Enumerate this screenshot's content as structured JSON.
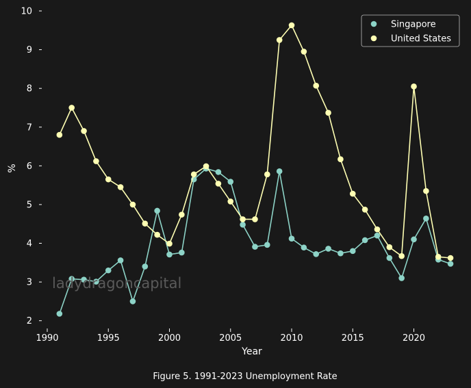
{
  "caption": "Figure 5. 1991-2023 Unemployment Rate",
  "watermark": "ladydragoncapital",
  "chart_data": {
    "type": "line",
    "title": "",
    "xlabel": "Year",
    "ylabel": "%",
    "xlim": [
      1990,
      2023.5
    ],
    "ylim": [
      1.8,
      10
    ],
    "xticks": [
      1990,
      1995,
      2000,
      2005,
      2010,
      2015,
      2020
    ],
    "yticks": [
      2,
      3,
      4,
      5,
      6,
      7,
      8,
      9,
      10
    ],
    "grid": false,
    "legend_position": "top-right",
    "x": [
      1991,
      1992,
      1993,
      1994,
      1995,
      1996,
      1997,
      1998,
      1999,
      2000,
      2001,
      2002,
      2003,
      2004,
      2005,
      2006,
      2007,
      2008,
      2009,
      2010,
      2011,
      2012,
      2013,
      2014,
      2015,
      2016,
      2017,
      2018,
      2019,
      2020,
      2021,
      2022,
      2023
    ],
    "series": [
      {
        "name": "Singapore",
        "color": "#8dd3c7",
        "values": [
          2.18,
          3.08,
          3.06,
          3.01,
          3.3,
          3.56,
          2.5,
          3.4,
          4.84,
          3.71,
          3.76,
          5.65,
          5.93,
          5.84,
          5.59,
          4.48,
          3.91,
          3.96,
          5.86,
          4.12,
          3.89,
          3.72,
          3.86,
          3.74,
          3.8,
          4.08,
          4.2,
          3.62,
          3.1,
          4.1,
          4.64,
          3.58,
          3.47
        ]
      },
      {
        "name": "United States",
        "color": "#ffffb3",
        "values": [
          6.8,
          7.5,
          6.9,
          6.12,
          5.65,
          5.45,
          5.0,
          4.51,
          4.22,
          3.99,
          4.74,
          5.78,
          5.99,
          5.54,
          5.08,
          4.62,
          4.62,
          5.78,
          9.25,
          9.63,
          8.95,
          8.07,
          7.37,
          6.17,
          5.28,
          4.87,
          4.36,
          3.9,
          3.67,
          8.05,
          5.35,
          3.65,
          3.62
        ]
      }
    ]
  }
}
